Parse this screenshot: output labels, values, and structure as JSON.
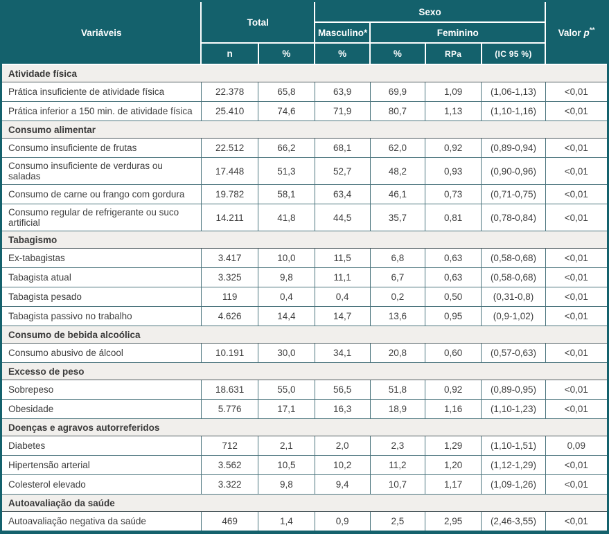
{
  "header": {
    "variaveis": "Variáveis",
    "total": "Total",
    "sexo": "Sexo",
    "masculino": "Masculino*",
    "feminino": "Feminino",
    "valor_label": "Valor",
    "valor_p_letter": "p",
    "valor_stars": "**",
    "sub": [
      "n",
      "%",
      "%",
      "%",
      "RPa",
      "(IC 95 %)"
    ]
  },
  "colors": {
    "header_teal": "#14616c",
    "section_bg": "#f1efec",
    "body_border": "#49737c",
    "body_text": "#3d3d3d"
  },
  "sections": [
    {
      "title": "Atividade física",
      "rows": [
        {
          "label": "Prática insuficiente de atividade física",
          "values": [
            "22.378",
            "65,8",
            "63,9",
            "69,9",
            "1,09",
            "(1,06-1,13)",
            "<0,01"
          ]
        },
        {
          "label": "Prática inferior a 150 min. de atividade física",
          "values": [
            "25.410",
            "74,6",
            "71,9",
            "80,7",
            "1,13",
            "(1,10-1,16)",
            "<0,01"
          ]
        }
      ]
    },
    {
      "title": "Consumo alimentar",
      "rows": [
        {
          "label": "Consumo insuficiente de frutas",
          "values": [
            "22.512",
            "66,2",
            "68,1",
            "62,0",
            "0,92",
            "(0,89-0,94)",
            "<0,01"
          ]
        },
        {
          "label": "Consumo insuficiente de verduras ou saladas",
          "values": [
            "17.448",
            "51,3",
            "52,7",
            "48,2",
            "0,93",
            "(0,90-0,96)",
            "<0,01"
          ]
        },
        {
          "label": "Consumo de carne ou frango com gordura",
          "values": [
            "19.782",
            "58,1",
            "63,4",
            "46,1",
            "0,73",
            "(0,71-0,75)",
            "<0,01"
          ]
        },
        {
          "label": "Consumo regular de refrigerante ou suco artificial",
          "values": [
            "14.211",
            "41,8",
            "44,5",
            "35,7",
            "0,81",
            "(0,78-0,84)",
            "<0,01"
          ]
        }
      ]
    },
    {
      "title": "Tabagismo",
      "rows": [
        {
          "label": "Ex-tabagistas",
          "values": [
            "3.417",
            "10,0",
            "11,5",
            "6,8",
            "0,63",
            "(0,58-0,68)",
            "<0,01"
          ]
        },
        {
          "label": "Tabagista atual",
          "values": [
            "3.325",
            "9,8",
            "11,1",
            "6,7",
            "0,63",
            "(0,58-0,68)",
            "<0,01"
          ]
        },
        {
          "label": "Tabagista pesado",
          "values": [
            "119",
            "0,4",
            "0,4",
            "0,2",
            "0,50",
            "(0,31-0,8)",
            "<0,01"
          ]
        },
        {
          "label": "Tabagista passivo no trabalho",
          "values": [
            "4.626",
            "14,4",
            "14,7",
            "13,6",
            "0,95",
            "(0,9-1,02)",
            "<0,01"
          ]
        }
      ]
    },
    {
      "title": "Consumo de bebida alcoólica",
      "rows": [
        {
          "label": "Consumo abusivo de álcool",
          "values": [
            "10.191",
            "30,0",
            "34,1",
            "20,8",
            "0,60",
            "(0,57-0,63)",
            "<0,01"
          ]
        }
      ]
    },
    {
      "title": "Excesso de peso",
      "rows": [
        {
          "label": "Sobrepeso",
          "values": [
            "18.631",
            "55,0",
            "56,5",
            "51,8",
            "0,92",
            "(0,89-0,95)",
            "<0,01"
          ]
        },
        {
          "label": "Obesidade",
          "values": [
            "5.776",
            "17,1",
            "16,3",
            "18,9",
            "1,16",
            "(1,10-1,23)",
            "<0,01"
          ]
        }
      ]
    },
    {
      "title": "Doenças e agravos autorreferidos",
      "rows": [
        {
          "label": "Diabetes",
          "values": [
            "712",
            "2,1",
            "2,0",
            "2,3",
            "1,29",
            "(1,10-1,51)",
            "0,09"
          ]
        },
        {
          "label": "Hipertensão arterial",
          "values": [
            "3.562",
            "10,5",
            "10,2",
            "11,2",
            "1,20",
            "(1,12-1,29)",
            "<0,01"
          ]
        },
        {
          "label": "Colesterol elevado",
          "values": [
            "3.322",
            "9,8",
            "9,4",
            "10,7",
            "1,17",
            "(1,09-1,26)",
            "<0,01"
          ]
        }
      ]
    },
    {
      "title": "Autoavaliação da saúde",
      "rows": [
        {
          "label": "Autoavaliação negativa da saúde",
          "values": [
            "469",
            "1,4",
            "0,9",
            "2,5",
            "2,95",
            "(2,46-3,55)",
            "<0,01"
          ]
        }
      ]
    }
  ]
}
